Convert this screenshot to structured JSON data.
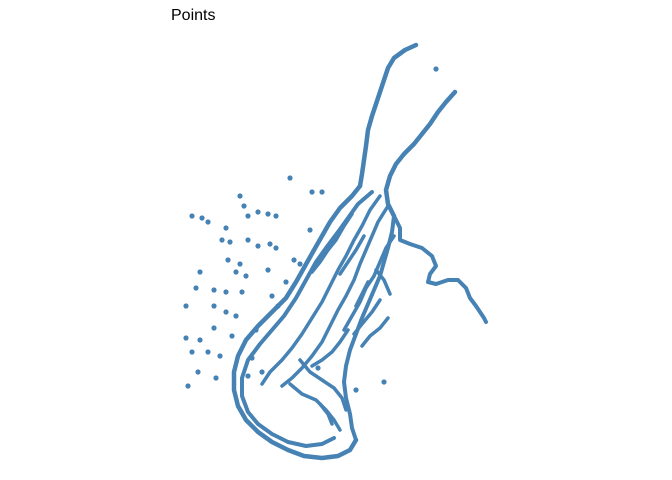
{
  "title": "Points",
  "style": {
    "point_color": "#4682B4",
    "background": "#FFFFFF"
  }
}
